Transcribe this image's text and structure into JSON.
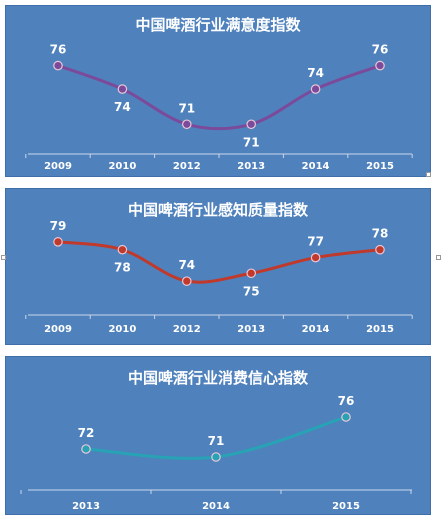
{
  "chart_data": [
    {
      "type": "line",
      "title": "中国啤酒行业满意度指数",
      "categories": [
        "2009",
        "2010",
        "2012",
        "2013",
        "2014",
        "2015"
      ],
      "series": [
        {
          "values": [
            76,
            74,
            71,
            71,
            74,
            76
          ],
          "color": "#7b4a9b"
        }
      ],
      "ylim": [
        70,
        77.5
      ]
    },
    {
      "type": "line",
      "title": "中国啤酒行业感知质量指数",
      "categories": [
        "2009",
        "2010",
        "2012",
        "2013",
        "2014",
        "2015"
      ],
      "series": [
        {
          "values": [
            79,
            78,
            74,
            75,
            77,
            78
          ],
          "color": "#c0392b"
        }
      ],
      "ylim": [
        73,
        80
      ]
    },
    {
      "type": "line",
      "title": "中国啤酒行业消费信心指数",
      "categories": [
        "2013",
        "2014",
        "2015"
      ],
      "series": [
        {
          "values": [
            72,
            71,
            76
          ],
          "color": "#27a3b5"
        }
      ],
      "ylim": [
        70,
        77
      ]
    }
  ],
  "colors": {
    "panel_bg": "#4f81bd",
    "text": "#ffffff",
    "axis": "#c8d6ea"
  }
}
